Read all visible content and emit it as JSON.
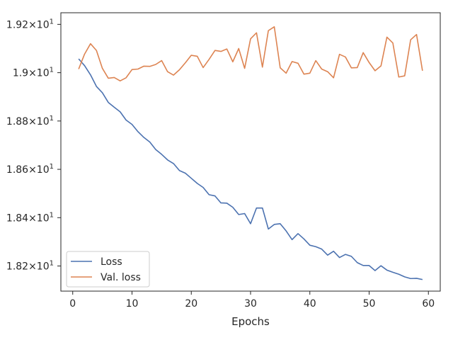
{
  "chart_data": {
    "type": "line",
    "title": "",
    "xlabel": "Epochs",
    "ylabel": "",
    "xlim": [
      -2,
      62
    ],
    "ylim": [
      18.096,
      19.248
    ],
    "grid": false,
    "legend_position": "lower-left",
    "x_ticks": [
      {
        "value": 0,
        "label": "0"
      },
      {
        "value": 10,
        "label": "10"
      },
      {
        "value": 20,
        "label": "20"
      },
      {
        "value": 30,
        "label": "30"
      },
      {
        "value": 40,
        "label": "40"
      },
      {
        "value": 50,
        "label": "50"
      },
      {
        "value": 60,
        "label": "60"
      }
    ],
    "y_ticks": [
      {
        "value": 18.2,
        "mantissa": "1.82",
        "exp": "1"
      },
      {
        "value": 18.4,
        "mantissa": "1.84",
        "exp": "1"
      },
      {
        "value": 18.6,
        "mantissa": "1.86",
        "exp": "1"
      },
      {
        "value": 18.8,
        "mantissa": "1.88",
        "exp": "1"
      },
      {
        "value": 19.0,
        "mantissa": "1.9",
        "exp": "1"
      },
      {
        "value": 19.2,
        "mantissa": "1.92",
        "exp": "1"
      }
    ],
    "x": [
      1,
      2,
      3,
      4,
      5,
      6,
      7,
      8,
      9,
      10,
      11,
      12,
      13,
      14,
      15,
      16,
      17,
      18,
      19,
      20,
      21,
      22,
      23,
      24,
      25,
      26,
      27,
      28,
      29,
      30,
      31,
      32,
      33,
      34,
      35,
      36,
      37,
      38,
      39,
      40,
      41,
      42,
      43,
      44,
      45,
      46,
      47,
      48,
      49,
      50,
      51,
      52,
      53,
      54,
      55,
      56,
      57,
      58,
      59
    ],
    "series": [
      {
        "name": "Loss",
        "color": "#4c72b0",
        "values": [
          19.057,
          19.029,
          18.991,
          18.943,
          18.917,
          18.877,
          18.857,
          18.838,
          18.804,
          18.786,
          18.756,
          18.732,
          18.713,
          18.682,
          18.662,
          18.639,
          18.624,
          18.595,
          18.584,
          18.563,
          18.542,
          18.525,
          18.495,
          18.49,
          18.461,
          18.46,
          18.443,
          18.413,
          18.417,
          18.375,
          18.44,
          18.44,
          18.353,
          18.372,
          18.375,
          18.345,
          18.309,
          18.334,
          18.312,
          18.286,
          18.28,
          18.27,
          18.245,
          18.261,
          18.235,
          18.248,
          18.24,
          18.214,
          18.202,
          18.202,
          18.181,
          18.201,
          18.183,
          18.174,
          18.166,
          18.155,
          18.148,
          18.149,
          18.144
        ]
      },
      {
        "name": "Val. loss",
        "color": "#dd8452",
        "values": [
          19.015,
          19.077,
          19.12,
          19.092,
          19.018,
          18.977,
          18.98,
          18.966,
          18.979,
          19.013,
          19.015,
          19.027,
          19.026,
          19.034,
          19.05,
          19.004,
          18.99,
          19.012,
          19.041,
          19.072,
          19.068,
          19.021,
          19.055,
          19.092,
          19.088,
          19.098,
          19.045,
          19.1,
          19.018,
          19.14,
          19.165,
          19.023,
          19.174,
          19.19,
          19.02,
          18.998,
          19.046,
          19.039,
          18.994,
          18.998,
          19.05,
          19.015,
          19.004,
          18.979,
          19.076,
          19.065,
          19.02,
          19.021,
          19.083,
          19.042,
          19.008,
          19.028,
          19.147,
          19.123,
          18.982,
          18.987,
          19.136,
          19.158,
          19.008
        ]
      }
    ]
  }
}
